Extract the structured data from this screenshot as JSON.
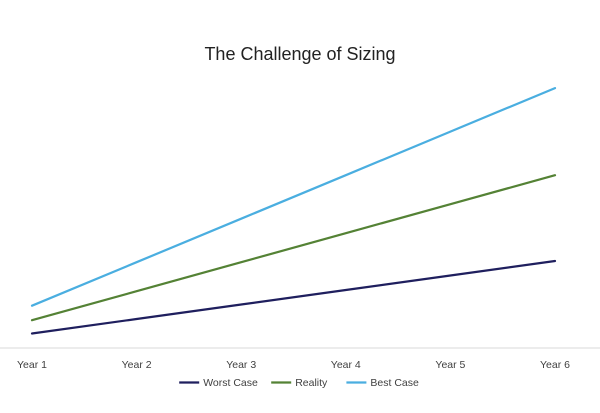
{
  "chart_data": {
    "type": "line",
    "title": "The Challenge of Sizing",
    "categories": [
      "Year 1",
      "Year 2",
      "Year 3",
      "Year 4",
      "Year 5",
      "Year 6"
    ],
    "series": [
      {
        "name": "Worst Case",
        "color": "#1f1f5e",
        "values": [
          1.2,
          2.4,
          3.6,
          4.8,
          6.0,
          7.2
        ]
      },
      {
        "name": "Reality",
        "color": "#548235",
        "values": [
          2.3,
          4.7,
          7.1,
          9.5,
          11.9,
          14.3
        ]
      },
      {
        "name": "Best Case",
        "color": "#4aaee0",
        "values": [
          3.5,
          7.1,
          10.7,
          14.3,
          17.9,
          21.5
        ]
      }
    ],
    "ylim": [
      0,
      23
    ],
    "xlabel": "",
    "ylabel": "",
    "y_axis_visible": false,
    "grid": false,
    "legend_position": "bottom"
  }
}
